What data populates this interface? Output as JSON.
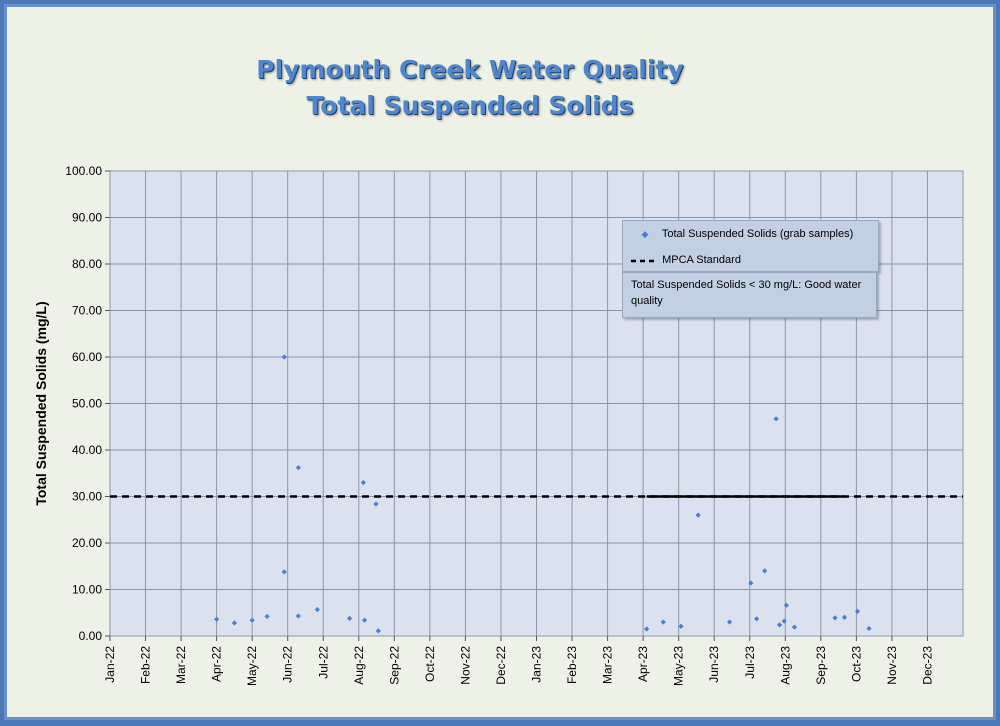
{
  "title_line1": "Plymouth Creek Water Quality",
  "title_line2": "Total Suspended Solids",
  "legend": {
    "series_label": "Total Suspended Solids (grab samples)",
    "standard_label": "MPCA Standard"
  },
  "note": "Total Suspended Solids < 30 mg/L: Good water quality",
  "colors": {
    "points": "#4a7fd0",
    "grid": "#8c96a8",
    "plot_bg": "#dae2ef",
    "standard": "#000000"
  },
  "chart_data": {
    "type": "scatter",
    "title": "Plymouth Creek Water Quality Total Suspended Solids",
    "ylabel": "Total Suspended Solids (mg/L)",
    "xlabel": "",
    "ylim": [
      0,
      100
    ],
    "yticks": [
      "0.00",
      "10.00",
      "20.00",
      "30.00",
      "40.00",
      "50.00",
      "60.00",
      "70.00",
      "80.00",
      "90.00",
      "100.00"
    ],
    "xticks": [
      "Jan-22",
      "Feb-22",
      "Mar-22",
      "Apr-22",
      "May-22",
      "Jun-22",
      "Jul-22",
      "Aug-22",
      "Sep-22",
      "Oct-22",
      "Nov-22",
      "Dec-22",
      "Jan-23",
      "Feb-23",
      "Mar-23",
      "Apr-23",
      "May-23",
      "Jun-23",
      "Jul-23",
      "Aug-23",
      "Sep-23",
      "Oct-23",
      "Nov-23",
      "Dec-23"
    ],
    "grid": true,
    "legend_position": "top-right",
    "standard": {
      "name": "MPCA Standard",
      "value": 30
    },
    "series": [
      {
        "name": "Total Suspended Solids (grab samples)",
        "points": [
          {
            "x": "2022-04-01",
            "y": 3.6
          },
          {
            "x": "2022-04-16",
            "y": 2.8
          },
          {
            "x": "2022-05-01",
            "y": 3.4
          },
          {
            "x": "2022-05-14",
            "y": 4.2
          },
          {
            "x": "2022-05-29",
            "y": 60.0
          },
          {
            "x": "2022-05-29",
            "y": 13.8
          },
          {
            "x": "2022-06-10",
            "y": 36.2
          },
          {
            "x": "2022-06-10",
            "y": 4.3
          },
          {
            "x": "2022-06-26",
            "y": 5.7
          },
          {
            "x": "2022-07-24",
            "y": 3.8
          },
          {
            "x": "2022-08-05",
            "y": 33.0
          },
          {
            "x": "2022-08-06",
            "y": 3.4
          },
          {
            "x": "2022-08-16",
            "y": 28.4
          },
          {
            "x": "2022-08-18",
            "y": 1.1
          },
          {
            "x": "2023-04-04",
            "y": 1.5
          },
          {
            "x": "2023-04-18",
            "y": 3.0
          },
          {
            "x": "2023-05-03",
            "y": 2.1
          },
          {
            "x": "2023-05-18",
            "y": 26.0
          },
          {
            "x": "2023-06-14",
            "y": 3.0
          },
          {
            "x": "2023-07-02",
            "y": 11.4
          },
          {
            "x": "2023-07-07",
            "y": 3.7
          },
          {
            "x": "2023-07-14",
            "y": 14.0
          },
          {
            "x": "2023-07-24",
            "y": 46.7
          },
          {
            "x": "2023-07-27",
            "y": 2.4
          },
          {
            "x": "2023-07-31",
            "y": 3.2
          },
          {
            "x": "2023-08-02",
            "y": 6.6
          },
          {
            "x": "2023-08-09",
            "y": 1.9
          },
          {
            "x": "2023-09-13",
            "y": 3.9
          },
          {
            "x": "2023-09-21",
            "y": 4.0
          },
          {
            "x": "2023-10-02",
            "y": 5.3
          },
          {
            "x": "2023-10-12",
            "y": 1.6
          }
        ]
      }
    ]
  }
}
